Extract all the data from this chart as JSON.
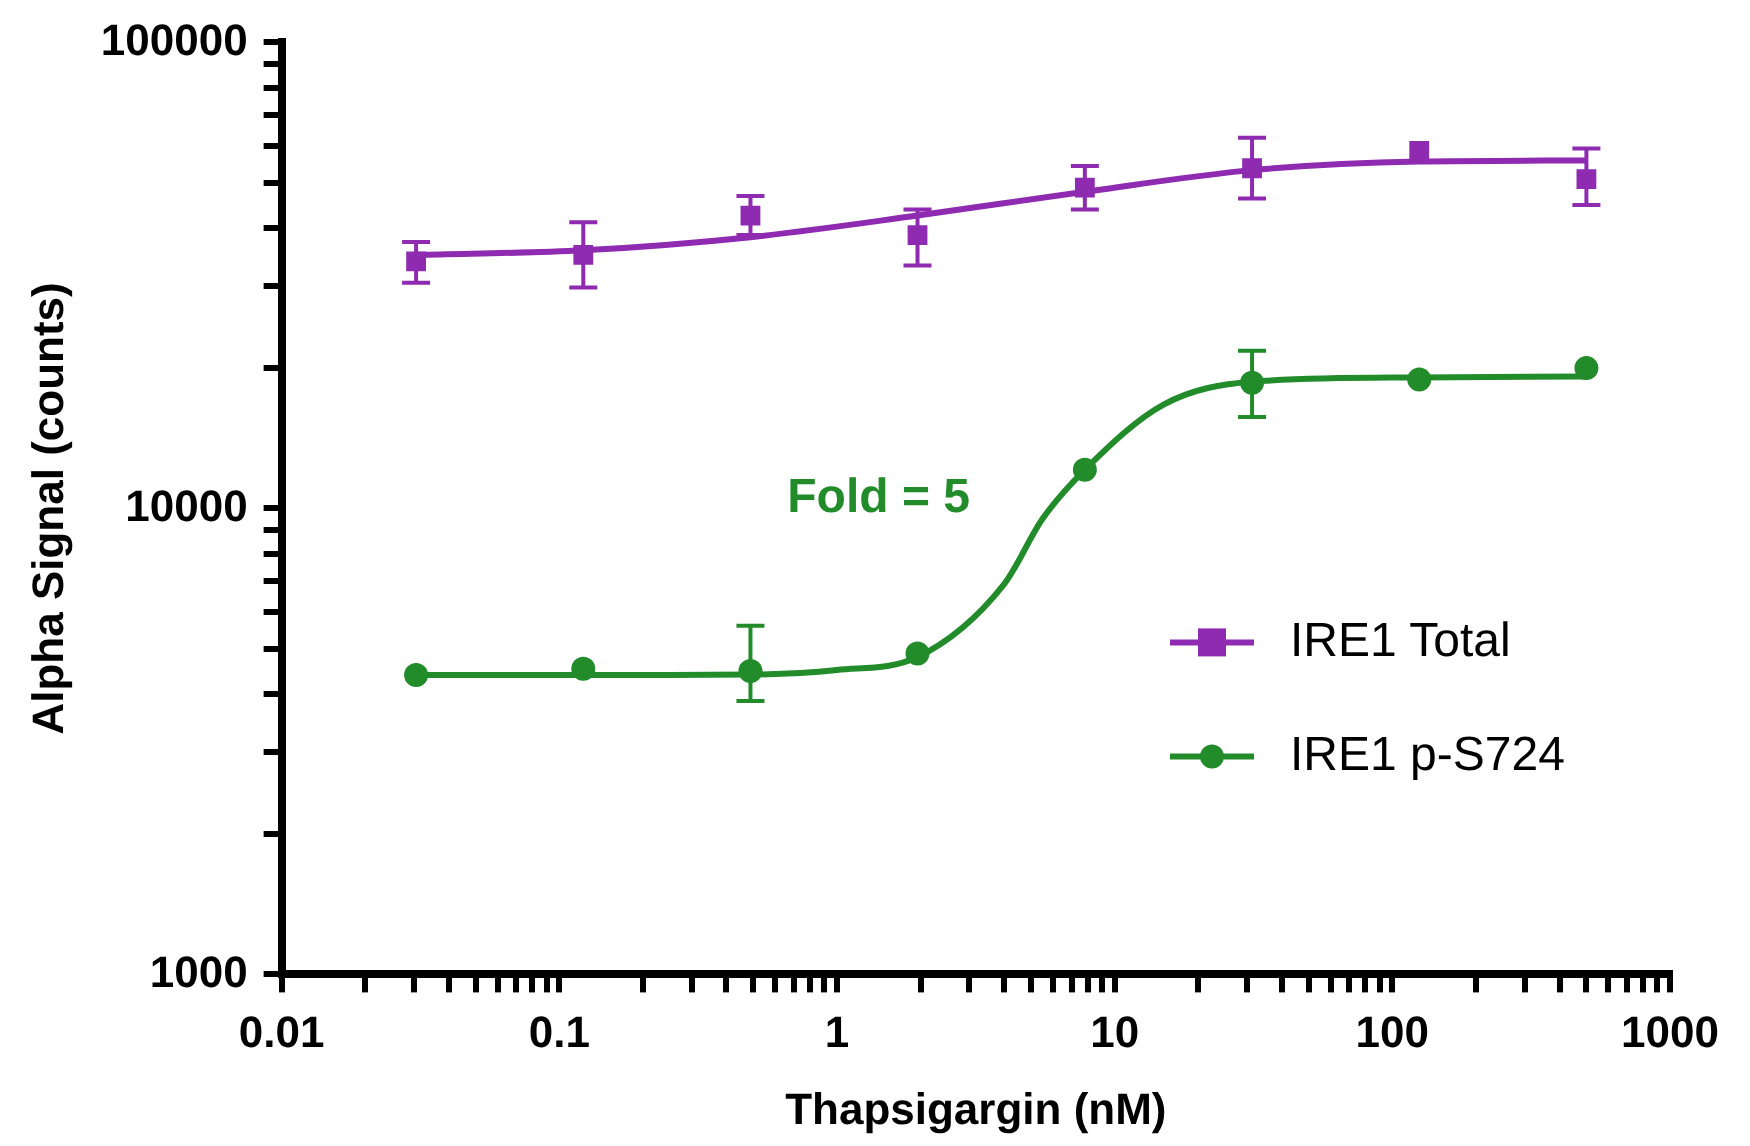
{
  "chart_data": {
    "type": "scatter",
    "xlabel": "Thapsigargin (nM)",
    "ylabel": "Alpha Signal (counts)",
    "log": "xy",
    "xlim": [
      0.01,
      1000
    ],
    "ylim": [
      1000,
      100000
    ],
    "xticks": [
      0.01,
      {
        "value": 0.02,
        "label": null
      },
      {
        "value": 0.03,
        "label": null
      },
      {
        "value": 0.04,
        "label": null
      },
      {
        "value": 0.05,
        "label": null
      },
      {
        "value": 0.06,
        "label": null
      },
      {
        "value": 0.07,
        "label": null
      },
      {
        "value": 0.08,
        "label": null
      },
      {
        "value": 0.09,
        "label": null
      },
      0.1,
      {
        "value": 0.2,
        "label": null
      },
      {
        "value": 0.3,
        "label": null
      },
      {
        "value": 0.4,
        "label": null
      },
      {
        "value": 0.5,
        "label": null
      },
      {
        "value": 0.6,
        "label": null
      },
      {
        "value": 0.7,
        "label": null
      },
      {
        "value": 0.8,
        "label": null
      },
      {
        "value": 0.9,
        "label": null
      },
      1,
      {
        "value": 2,
        "label": null
      },
      {
        "value": 3,
        "label": null
      },
      {
        "value": 4,
        "label": null
      },
      {
        "value": 5,
        "label": null
      },
      {
        "value": 6,
        "label": null
      },
      {
        "value": 7,
        "label": null
      },
      {
        "value": 8,
        "label": null
      },
      {
        "value": 9,
        "label": null
      },
      10,
      {
        "value": 20,
        "label": null
      },
      {
        "value": 30,
        "label": null
      },
      {
        "value": 40,
        "label": null
      },
      {
        "value": 50,
        "label": null
      },
      {
        "value": 60,
        "label": null
      },
      {
        "value": 70,
        "label": null
      },
      {
        "value": 80,
        "label": null
      },
      {
        "value": 90,
        "label": null
      },
      100,
      {
        "value": 200,
        "label": null
      },
      {
        "value": 300,
        "label": null
      },
      {
        "value": 400,
        "label": null
      },
      {
        "value": 500,
        "label": null
      },
      {
        "value": 600,
        "label": null
      },
      {
        "value": 700,
        "label": null
      },
      {
        "value": 800,
        "label": null
      },
      {
        "value": 900,
        "label": null
      },
      1000
    ],
    "yticks": [
      1000,
      {
        "value": 2000,
        "label": null
      },
      {
        "value": 3000,
        "label": null
      },
      {
        "value": 4000,
        "label": null
      },
      {
        "value": 5000,
        "label": null
      },
      {
        "value": 6000,
        "label": null
      },
      {
        "value": 7000,
        "label": null
      },
      {
        "value": 8000,
        "label": null
      },
      {
        "value": 9000,
        "label": null
      },
      10000,
      {
        "value": 20000,
        "label": null
      },
      {
        "value": 30000,
        "label": null
      },
      {
        "value": 40000,
        "label": null
      },
      {
        "value": 50000,
        "label": null
      },
      {
        "value": 60000,
        "label": null
      },
      {
        "value": 70000,
        "label": null
      },
      {
        "value": 80000,
        "label": null
      },
      {
        "value": 90000,
        "label": null
      },
      100000
    ],
    "grid": false,
    "legend": "right",
    "annotations": [
      "Fold = 5"
    ],
    "series": [
      {
        "name": "IRE1 Total",
        "marker": "square",
        "color": "#8e2bb0",
        "x": [
          0.0305,
          0.122,
          0.488,
          1.95,
          7.81,
          31.25,
          125,
          500
        ],
        "values": [
          33900,
          35000,
          42500,
          38600,
          48800,
          53700,
          58500,
          50900
        ],
        "errors": [
          [
            30500,
            37300
          ],
          [
            29800,
            41100
          ],
          [
            38600,
            46800
          ],
          [
            33200,
            43800
          ],
          [
            43800,
            54300
          ],
          [
            46250,
            62400
          ],
          null,
          [
            44800,
            59200
          ]
        ]
      },
      {
        "type": "line",
        "marker": "none",
        "color": "#8e2bb0",
        "x": [
          0.0305,
          0.122,
          0.488,
          1.95,
          7.81,
          31.25,
          125,
          500
        ],
        "values": [
          35000,
          35800,
          38200,
          42500,
          47800,
          53200,
          55500,
          55800
        ]
      },
      {
        "name": "IRE1 p-S724",
        "marker": "circle",
        "color": "#228b2a",
        "x": [
          0.0305,
          0.122,
          0.488,
          1.95,
          7.81,
          31.25,
          125,
          500
        ],
        "values": [
          4390,
          4530,
          4480,
          4880,
          12100,
          18600,
          18900,
          20000
        ],
        "errors": [
          null,
          null,
          [
            3860,
            5600
          ],
          null,
          null,
          [
            15700,
            21800
          ],
          null,
          null
        ]
      },
      {
        "type": "line",
        "marker": "none",
        "color": "#228b2a",
        "x": [
          0.0305,
          0.122,
          0.488,
          1,
          1.95,
          4,
          5.5,
          7.81,
          15,
          31.25,
          125,
          500
        ],
        "values": [
          4390,
          4390,
          4400,
          4500,
          4800,
          6880,
          9500,
          12100,
          16700,
          18700,
          19100,
          19200
        ]
      }
    ]
  }
}
